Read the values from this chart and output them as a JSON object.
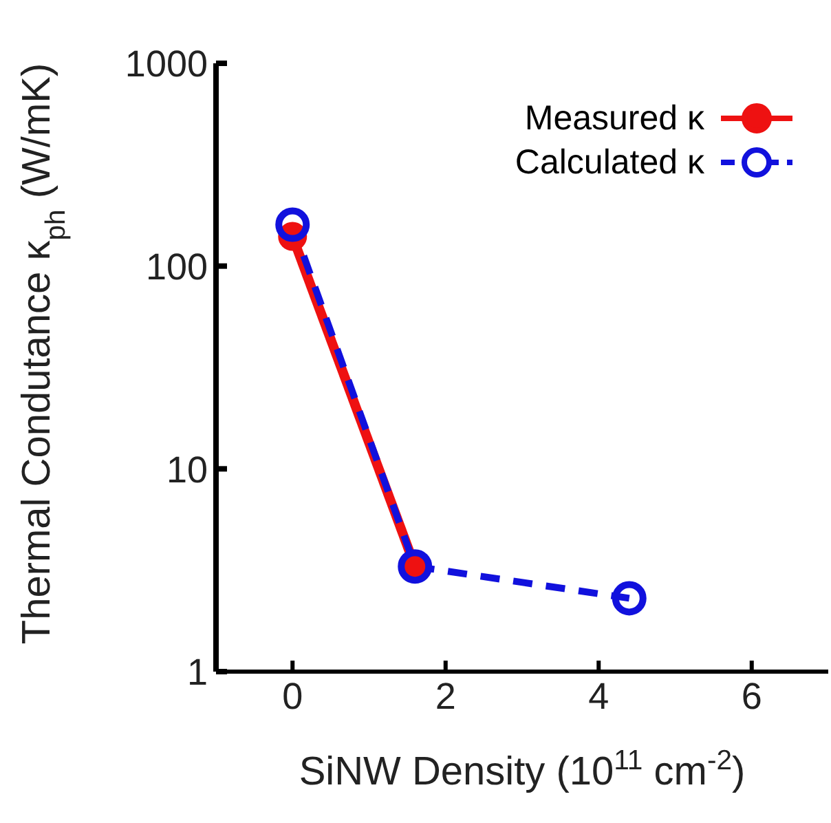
{
  "chart_data": {
    "type": "line",
    "xlabel": "SiNW Density (10$^{11}$ cm$^{-2}$)",
    "ylabel": "Thermal Condutance κ$_{ph}$ (W/mK)",
    "series": [
      {
        "name": "Measured κ",
        "color": "#ee1111",
        "x": [
          0,
          1.6
        ],
        "values": [
          140,
          3.3
        ],
        "line_style": "solid",
        "marker": "circle"
      },
      {
        "name": "Calculated κ",
        "color": "#1111dd",
        "x": [
          0,
          1.6,
          4.4
        ],
        "values": [
          160,
          3.3,
          2.3
        ],
        "line_style": "dashed",
        "marker": "circle"
      }
    ],
    "xlim": [
      -1,
      7
    ],
    "xticks": [
      0,
      2,
      4,
      6
    ],
    "ylim": [
      1,
      1000
    ],
    "yticks": [
      1,
      10,
      100,
      1000
    ],
    "log": "y",
    "grid": false,
    "legend": "top right"
  }
}
